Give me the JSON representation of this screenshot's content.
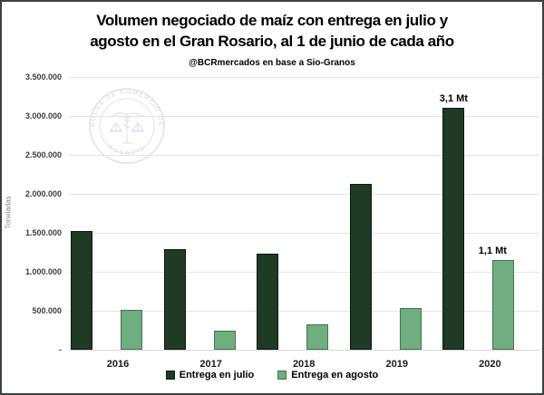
{
  "header": {
    "title_line1": "Volumen negociado de maíz con entrega en julio y",
    "title_line2": "agosto en el Gran Rosario, al 1 de junio de cada año",
    "subtitle": "@BCRmercados en base a Sio-Granos"
  },
  "watermark": {
    "text_top": "BOLSA DE COMERCIO DE",
    "text_bottom": "ROSARIO",
    "icon": "caduceus-scales-icon",
    "color": "#dde1ea"
  },
  "chart_data": {
    "type": "bar",
    "title": "Volumen negociado de maíz con entrega en julio y agosto en el Gran Rosario, al 1 de junio de cada año",
    "subtitle": "@BCRmercados en base a Sio-Granos",
    "categories": [
      "2016",
      "2017",
      "2018",
      "2019",
      "2020"
    ],
    "series": [
      {
        "name": "Entrega en julio",
        "color": "#1f3a25",
        "border_color": "#0c1a10",
        "values": [
          1520000,
          1290000,
          1230000,
          2130000,
          3100000
        ]
      },
      {
        "name": "Entrega en agosto",
        "color": "#6fae7e",
        "border_color": "#4c6f53",
        "values": [
          510000,
          240000,
          330000,
          540000,
          1150000
        ]
      }
    ],
    "annotations": [
      {
        "series": 0,
        "category_index": 4,
        "text": "3,1 Mt"
      },
      {
        "series": 1,
        "category_index": 4,
        "text": "1,1 Mt"
      }
    ],
    "xlabel": "",
    "ylabel": "Toneladas",
    "ylim": [
      0,
      3500000
    ],
    "yticks": {
      "values": [
        3500000,
        3000000,
        2500000,
        2000000,
        1500000,
        1000000,
        500000,
        0
      ],
      "labels": [
        "3.500.000",
        "3.000.000",
        "2.500.000",
        "2.000.000",
        "1.500.000",
        "1.000.000",
        "500.000",
        "-"
      ]
    },
    "grid": true,
    "legend_position": "bottom"
  }
}
